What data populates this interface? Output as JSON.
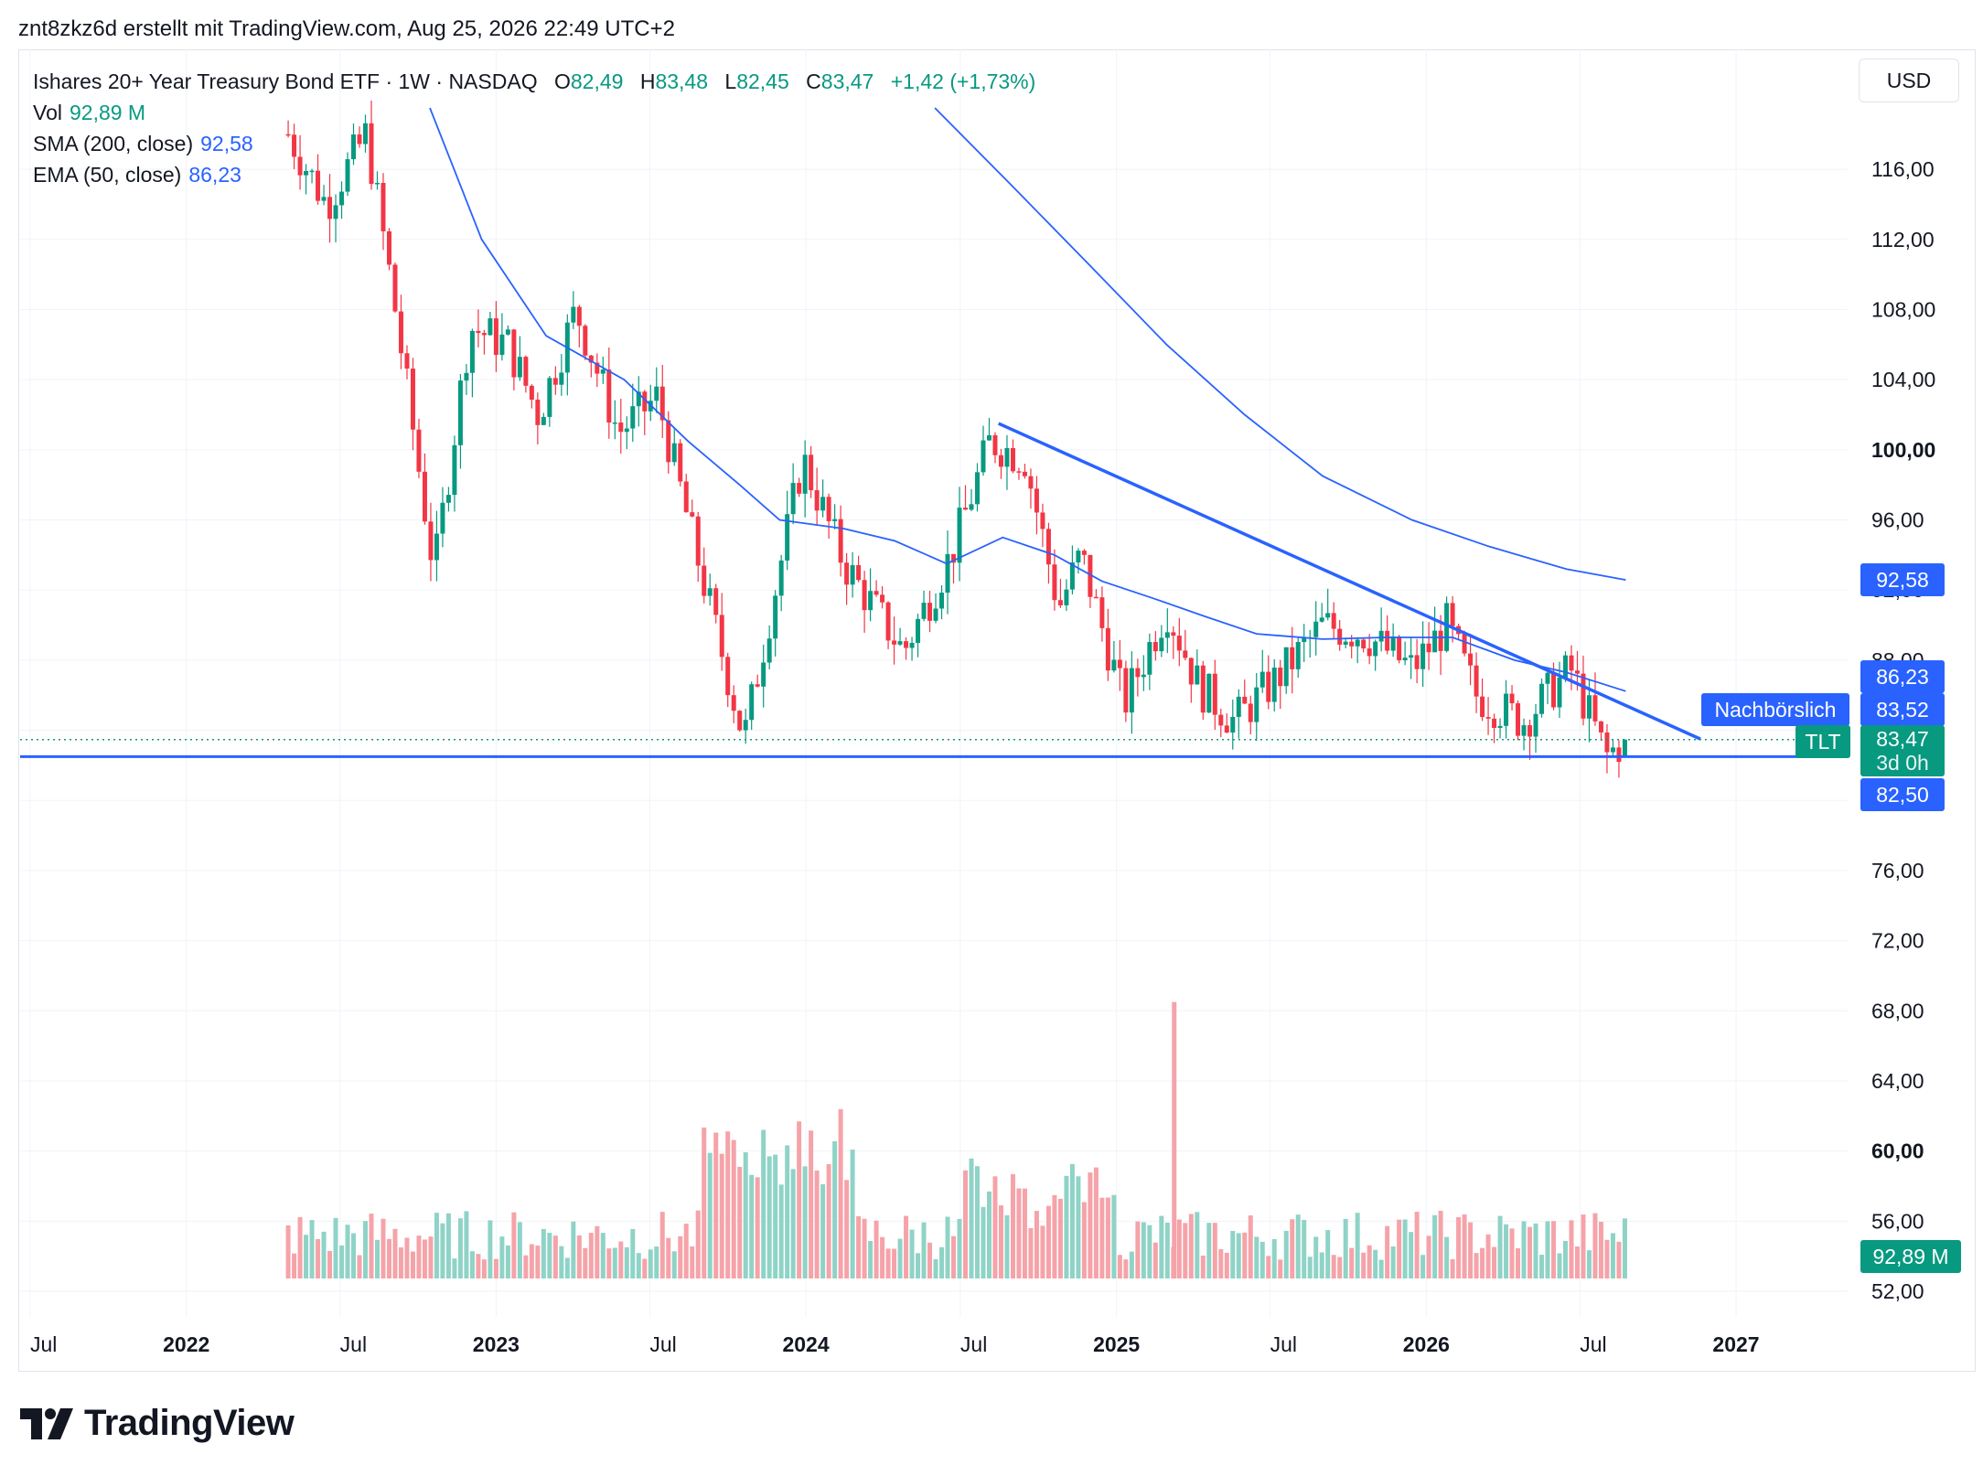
{
  "header": {
    "text": "znt8zkz6d erstellt mit TradingView.com, Aug 25, 2026 22:49 UTC+2"
  },
  "legend": {
    "symbol": "Ishares 20+ Year Treasury Bond ETF · 1W · NASDAQ",
    "open_label": "O",
    "open": "82,49",
    "high_label": "H",
    "high": "83,48",
    "low_label": "L",
    "low": "82,45",
    "close_label": "C",
    "close": "83,47",
    "change": "+1,42 (+1,73%)",
    "vol_label": "Vol",
    "vol": "92,89 M",
    "sma_label": "SMA (200, close)",
    "sma": "92,58",
    "ema_label": "EMA (50, close)",
    "ema": "86,23"
  },
  "currency": "USD",
  "tags": {
    "sma": "92,58",
    "ema": "86,23",
    "post_label": "Nachbörslich",
    "post_value": "83,52",
    "ticker": "TLT",
    "last": "83,47",
    "countdown": "3d 0h",
    "support": "82,50",
    "volume": "92,89 M"
  },
  "brand": {
    "name": "TradingView"
  },
  "colors": {
    "up": "#089981",
    "down": "#f23645",
    "up_vol": "#8fd3c7",
    "down_vol": "#f5a3a9",
    "line": "#2962ff",
    "blue_tag": "#2962ff"
  },
  "chart_data": {
    "type": "candlestick",
    "ylim": [
      52,
      119
    ],
    "y_ticks": [
      {
        "value": 52,
        "label": "52,00"
      },
      {
        "value": 56,
        "label": "56,00"
      },
      {
        "value": 60,
        "label": "60,00",
        "bold": true
      },
      {
        "value": 64,
        "label": "64,00"
      },
      {
        "value": 68,
        "label": "68,00"
      },
      {
        "value": 72,
        "label": "72,00"
      },
      {
        "value": 76,
        "label": "76,00"
      },
      {
        "value": 80,
        "label": "80,00"
      },
      {
        "value": 84,
        "label": "84,00"
      },
      {
        "value": 88,
        "label": "88,00"
      },
      {
        "value": 92,
        "label": "92,00"
      },
      {
        "value": 96,
        "label": "96,00"
      },
      {
        "value": 100,
        "label": "100,00",
        "bold": true
      },
      {
        "value": 104,
        "label": "104,00"
      },
      {
        "value": 108,
        "label": "108,00"
      },
      {
        "value": 112,
        "label": "112,00"
      },
      {
        "value": 116,
        "label": "116,00"
      }
    ],
    "x_ticks": [
      {
        "label": "Jul",
        "date": "2021-07-01"
      },
      {
        "label": "2022",
        "date": "2022-01-01",
        "bold": true
      },
      {
        "label": "Jul",
        "date": "2022-07-01"
      },
      {
        "label": "2023",
        "date": "2023-01-01",
        "bold": true
      },
      {
        "label": "Jul",
        "date": "2023-07-01"
      },
      {
        "label": "2024",
        "date": "2024-01-01",
        "bold": true
      },
      {
        "label": "Jul",
        "date": "2024-07-01"
      },
      {
        "label": "2025",
        "date": "2025-01-01",
        "bold": true
      },
      {
        "label": "Jul",
        "date": "2025-07-01"
      },
      {
        "label": "2026",
        "date": "2026-01-01",
        "bold": true
      },
      {
        "label": "Jul",
        "date": "2026-07-01"
      },
      {
        "label": "2027",
        "date": "2027-01-01",
        "bold": true
      }
    ],
    "price_series": {
      "name": "TLT",
      "points": [
        {
          "date": "2022-05-01",
          "close": 118
        },
        {
          "date": "2022-06-15",
          "close": 114
        },
        {
          "date": "2022-08-01",
          "close": 118
        },
        {
          "date": "2022-09-01",
          "close": 109
        },
        {
          "date": "2022-10-20",
          "close": 93
        },
        {
          "date": "2022-12-01",
          "close": 107
        },
        {
          "date": "2023-01-15",
          "close": 106
        },
        {
          "date": "2023-02-20",
          "close": 102
        },
        {
          "date": "2023-04-05",
          "close": 108
        },
        {
          "date": "2023-05-25",
          "close": 101
        },
        {
          "date": "2023-07-10",
          "close": 103
        },
        {
          "date": "2023-08-20",
          "close": 95
        },
        {
          "date": "2023-10-20",
          "close": 83.5
        },
        {
          "date": "2023-12-28",
          "close": 99.5
        },
        {
          "date": "2024-02-15",
          "close": 93.5
        },
        {
          "date": "2024-04-25",
          "close": 88.5
        },
        {
          "date": "2024-06-20",
          "close": 94
        },
        {
          "date": "2024-08-05",
          "close": 100.5
        },
        {
          "date": "2024-09-15",
          "close": 99.5
        },
        {
          "date": "2024-10-25",
          "close": 91
        },
        {
          "date": "2024-11-20",
          "close": 94
        },
        {
          "date": "2025-01-10",
          "close": 85.5
        },
        {
          "date": "2025-03-01",
          "close": 91
        },
        {
          "date": "2025-04-08",
          "close": 86.5
        },
        {
          "date": "2025-05-20",
          "close": 84.5
        },
        {
          "date": "2025-07-10",
          "close": 87
        },
        {
          "date": "2025-09-01",
          "close": 90
        },
        {
          "date": "2025-10-20",
          "close": 89.5
        },
        {
          "date": "2025-12-15",
          "close": 87.5
        },
        {
          "date": "2026-01-25",
          "close": 90
        },
        {
          "date": "2026-03-01",
          "close": 86
        },
        {
          "date": "2026-04-25",
          "close": 84.5
        },
        {
          "date": "2026-06-20",
          "close": 87.5
        },
        {
          "date": "2026-08-01",
          "close": 82.5
        },
        {
          "date": "2026-08-24",
          "close": 83.47
        }
      ]
    },
    "ema_50": {
      "name": "EMA (50, close)",
      "points": [
        {
          "date": "2022-10-15",
          "value": 119.5
        },
        {
          "date": "2022-12-15",
          "value": 112
        },
        {
          "date": "2023-03-01",
          "value": 106.5
        },
        {
          "date": "2023-06-01",
          "value": 104
        },
        {
          "date": "2023-08-15",
          "value": 100.5
        },
        {
          "date": "2023-10-15",
          "value": 98
        },
        {
          "date": "2023-12-01",
          "value": 96
        },
        {
          "date": "2024-02-15",
          "value": 95.5
        },
        {
          "date": "2024-04-15",
          "value": 94.8
        },
        {
          "date": "2024-06-15",
          "value": 93.5
        },
        {
          "date": "2024-08-20",
          "value": 95
        },
        {
          "date": "2024-10-20",
          "value": 94
        },
        {
          "date": "2024-12-15",
          "value": 92.5
        },
        {
          "date": "2025-02-15",
          "value": 91.5
        },
        {
          "date": "2025-04-15",
          "value": 90.5
        },
        {
          "date": "2025-06-15",
          "value": 89.5
        },
        {
          "date": "2025-09-01",
          "value": 89.2
        },
        {
          "date": "2025-11-15",
          "value": 89.3
        },
        {
          "date": "2026-02-01",
          "value": 89.3
        },
        {
          "date": "2026-04-15",
          "value": 88
        },
        {
          "date": "2026-06-15",
          "value": 87.3
        },
        {
          "date": "2026-08-24",
          "value": 86.23
        }
      ]
    },
    "sma_200": {
      "name": "SMA (200, close)",
      "points": [
        {
          "date": "2024-06-01",
          "value": 119.5
        },
        {
          "date": "2024-09-01",
          "value": 115
        },
        {
          "date": "2024-12-01",
          "value": 110.5
        },
        {
          "date": "2025-03-01",
          "value": 106
        },
        {
          "date": "2025-06-01",
          "value": 102
        },
        {
          "date": "2025-09-01",
          "value": 98.5
        },
        {
          "date": "2025-12-15",
          "value": 96
        },
        {
          "date": "2026-03-15",
          "value": 94.5
        },
        {
          "date": "2026-06-15",
          "value": 93.2
        },
        {
          "date": "2026-08-24",
          "value": 92.58
        }
      ]
    },
    "trendlines": [
      {
        "name": "Nachbörslich",
        "from": {
          "date": "2024-08-15",
          "value": 101.5
        },
        "to": {
          "date": "2026-11-20",
          "value": 83.5
        }
      },
      {
        "name": "support",
        "from": {
          "date": "2021-06-15",
          "value": 82.5
        },
        "to": {
          "date": "2027-03-15",
          "value": 82.5
        }
      }
    ],
    "volume_spike": {
      "date": "2025-03-10",
      "value": 68.5
    }
  }
}
